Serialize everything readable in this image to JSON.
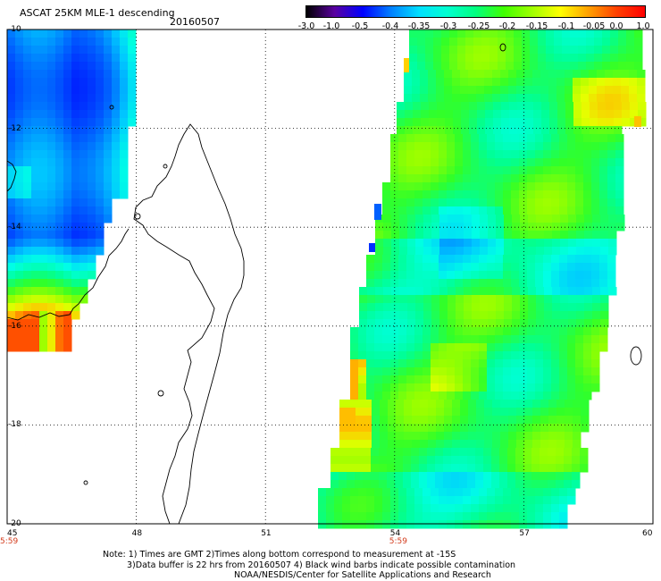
{
  "header": {
    "title": "ASCAT 25KM MLE-1 descending",
    "date": "20160507"
  },
  "colorbar": {
    "labels": [
      "-3.0",
      "-1.0",
      "-0.5",
      "-0.4",
      "-0.35",
      "-0.3",
      "-0.25",
      "-0.2",
      "-0.15",
      "-0.1",
      "-0.05",
      "0.0",
      "1.0"
    ],
    "colors": [
      "#000000",
      "#5a00a0",
      "#0000ff",
      "#0080ff",
      "#00e0ff",
      "#00ffd0",
      "#00ff80",
      "#40ff00",
      "#a0ff00",
      "#ffff00",
      "#ffa000",
      "#ff4000",
      "#ff0000"
    ]
  },
  "axes": {
    "lon_ticks": [
      "45",
      "48",
      "51",
      "54",
      "57",
      "60"
    ],
    "lat_ticks": [
      "-10",
      "-12",
      "-14",
      "-16",
      "-18",
      "-20"
    ],
    "lon_range": [
      45,
      60
    ],
    "lat_range": [
      -10,
      -20
    ],
    "time_labels": [
      {
        "text": "5:59",
        "lon": 45
      },
      {
        "text": "5:59",
        "lon": 54
      }
    ]
  },
  "notes": {
    "line1": "Note: 1) Times are GMT 2)Times along bottom correspond to measurement at -15S",
    "line2": "3)Data buffer is 22 hrs from 20160507 4) Black wind barbs indicate possible contamination",
    "line3": "NOAA/NESDIS/Center for Satellite Applications and Research"
  }
}
